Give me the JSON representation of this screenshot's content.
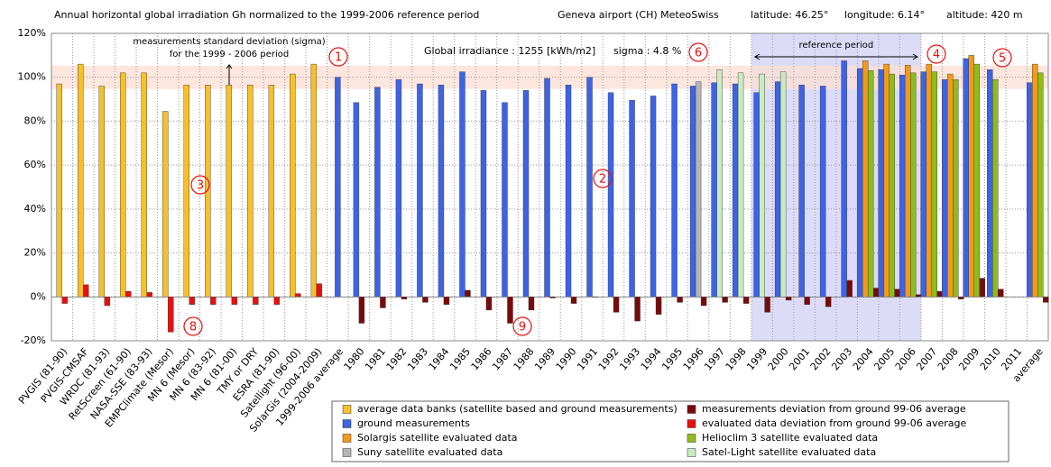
{
  "chart_data": {
    "type": "bar",
    "title": "Annual horizontal global irradiation Gh normalized to the 1999-2006 reference period",
    "source": "Geneva airport (CH) MeteoSwiss",
    "latitude": "latitude: 46.25°",
    "longitude": "longitude: 6.14°",
    "altitude": "altitude: 420 m",
    "sigma_note": [
      "measurements standard deviation (sigma)",
      "for the 1999 - 2006 period"
    ],
    "irradiance_text": "Global irradiance : 1255 [kWh/m2]",
    "sigma_text": "sigma : 4.8 %",
    "reference_label": "reference period",
    "annotations": [
      "1",
      "2",
      "3",
      "4",
      "5",
      "6",
      "8",
      "9"
    ],
    "categories": [
      "PVGIS (81-90)",
      "PVGIS-CMSAF",
      "WRDC (81-93)",
      "RetScreen (61-90)",
      "NASA-SSE (83-93)",
      "EMPClimate (Mesor)",
      "MN 6 (Mesor)",
      "MN 6 (83-92)",
      "MN 6 (81-00)",
      "TMY or DRY",
      "ESRA (81-90)",
      "Satellight (96-00)",
      "SolarGis (2004-2009)",
      "1999-2006 average",
      "1980",
      "1981",
      "1982",
      "1983",
      "1984",
      "1985",
      "1986",
      "1987",
      "1988",
      "1989",
      "1990",
      "1991",
      "1992",
      "1993",
      "1994",
      "1995",
      "1996",
      "1997",
      "1998",
      "1999",
      "2000",
      "2001",
      "2002",
      "2003",
      "2004",
      "2005",
      "2006",
      "2007",
      "2008",
      "2009",
      "2010",
      "2011",
      "average"
    ],
    "series": [
      {
        "name": "average data banks (satellite based and ground measurements)",
        "color": "#f6c02a",
        "values": [
          97,
          106,
          96,
          102,
          102,
          84.5,
          96.5,
          96.5,
          96.5,
          96.5,
          96.5,
          101.5,
          106,
          null,
          null,
          null,
          null,
          null,
          null,
          null,
          null,
          null,
          null,
          null,
          null,
          null,
          null,
          null,
          null,
          null,
          null,
          null,
          null,
          null,
          null,
          null,
          null,
          null,
          null,
          null,
          null,
          null,
          null,
          null,
          null,
          null,
          null
        ]
      },
      {
        "name": "measurements deviation from ground 99-06 average",
        "color": "#7a0a0a",
        "values": [
          null,
          null,
          null,
          null,
          null,
          null,
          null,
          null,
          null,
          null,
          null,
          null,
          null,
          null,
          -12,
          -5,
          -1,
          -2.5,
          -3.5,
          3,
          -6,
          -12,
          -6,
          -0.5,
          -3,
          0,
          -7,
          -11,
          -8,
          -2.5,
          -4,
          -2.5,
          -3,
          -7,
          -1.5,
          -3.5,
          -4.5,
          7.5,
          4,
          3.5,
          1,
          2.5,
          -1,
          8.5,
          3.5,
          null,
          -2.5
        ]
      },
      {
        "name": "ground measurements",
        "color": "#3d63e6",
        "values": [
          null,
          null,
          null,
          null,
          null,
          null,
          null,
          null,
          null,
          null,
          null,
          null,
          null,
          100,
          88.5,
          95.5,
          99,
          97,
          96.5,
          102.5,
          94,
          88.5,
          94,
          99.5,
          96.5,
          100,
          93,
          89.5,
          91.5,
          97,
          96,
          97.5,
          97,
          93,
          98,
          96.5,
          96,
          107.5,
          104,
          103.5,
          101,
          102.5,
          99,
          108.5,
          103.5,
          null,
          97.5
        ]
      },
      {
        "name": "evaluated data deviation from ground 99-06 average",
        "color": "#e8100f",
        "values": [
          -3,
          5.5,
          -4,
          2.5,
          2,
          -16,
          -3.5,
          -3.5,
          -3.5,
          -3.5,
          -3.5,
          1.5,
          6,
          null,
          null,
          null,
          null,
          null,
          null,
          null,
          null,
          null,
          null,
          null,
          null,
          null,
          null,
          null,
          null,
          null,
          null,
          null,
          null,
          null,
          null,
          null,
          null,
          null,
          null,
          null,
          null,
          null,
          null,
          null,
          null,
          null,
          null
        ]
      },
      {
        "name": "Solargis satellite evaluated data",
        "color": "#f39a1b",
        "values": [
          null,
          null,
          null,
          null,
          null,
          null,
          null,
          null,
          null,
          null,
          null,
          null,
          null,
          null,
          null,
          null,
          null,
          null,
          null,
          null,
          null,
          null,
          null,
          null,
          null,
          null,
          null,
          null,
          null,
          null,
          null,
          null,
          null,
          null,
          null,
          null,
          null,
          null,
          107.5,
          106,
          105.5,
          106,
          101.5,
          110,
          null,
          null,
          106
        ]
      },
      {
        "name": "Helioclim 3  satellite evaluated data",
        "color": "#8fbc1a",
        "values": [
          null,
          null,
          null,
          null,
          null,
          null,
          null,
          null,
          null,
          null,
          null,
          null,
          null,
          null,
          null,
          null,
          null,
          null,
          null,
          null,
          null,
          null,
          null,
          null,
          null,
          null,
          null,
          null,
          null,
          null,
          null,
          null,
          null,
          null,
          null,
          null,
          null,
          null,
          103,
          101.5,
          102,
          102.5,
          99,
          106,
          99,
          null,
          102
        ]
      },
      {
        "name": "Suny satellite evaluated data",
        "color": "#b5b5b5",
        "values": [
          null,
          null,
          null,
          null,
          null,
          null,
          null,
          null,
          null,
          null,
          null,
          null,
          null,
          null,
          null,
          null,
          null,
          null,
          null,
          null,
          null,
          null,
          null,
          null,
          null,
          null,
          null,
          null,
          null,
          null,
          98,
          null,
          null,
          null,
          null,
          null,
          null,
          null,
          null,
          null,
          null,
          null,
          null,
          null,
          null,
          null,
          null
        ]
      },
      {
        "name": "Satel-Light satellite evaluated data",
        "color": "#c8ecc0",
        "values": [
          null,
          null,
          null,
          null,
          null,
          null,
          null,
          null,
          null,
          null,
          null,
          null,
          null,
          null,
          null,
          null,
          null,
          null,
          null,
          null,
          null,
          null,
          null,
          null,
          null,
          null,
          null,
          null,
          null,
          null,
          null,
          103.5,
          102,
          101.5,
          102.5,
          null,
          null,
          null,
          null,
          null,
          null,
          null,
          null,
          null,
          null,
          null,
          null
        ]
      }
    ],
    "ylim": [
      -20,
      120
    ],
    "yticks": [
      {
        "value": -20,
        "label": "-20%"
      },
      {
        "value": 0,
        "label": "0%"
      },
      {
        "value": 20,
        "label": "20%"
      },
      {
        "value": 40,
        "label": "40%"
      },
      {
        "value": 60,
        "label": "60%"
      },
      {
        "value": 80,
        "label": "80%"
      },
      {
        "value": 100,
        "label": "100%"
      },
      {
        "value": 120,
        "label": "120%"
      }
    ],
    "grid": true
  }
}
